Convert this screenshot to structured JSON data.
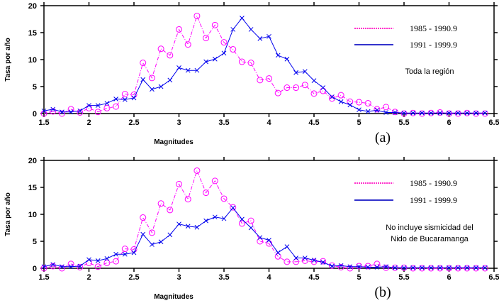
{
  "chart_data": [
    {
      "type": "line",
      "panel_label": "(a)",
      "note": [
        "Toda la región"
      ],
      "xlabel": "Magnitudes",
      "ylabel": "Tasa por año",
      "xlim": [
        1.5,
        6.5
      ],
      "ylim": [
        0,
        20
      ],
      "xticks": [
        "1.5",
        "2",
        "2.5",
        "3",
        "3.5",
        "4",
        "4.5",
        "5",
        "5.5",
        "6",
        "6.5"
      ],
      "yticks": [
        "0",
        "5",
        "10",
        "15",
        "20"
      ],
      "x_start": 1.5,
      "x_step": 0.1,
      "series": [
        {
          "name": "1985 - 1990.9",
          "color": "#ff00ff",
          "marker": "circle",
          "style": "dashdot",
          "values": [
            0,
            0.4,
            0,
            0.8,
            0.2,
            1,
            0.3,
            1,
            1.3,
            3.6,
            3.5,
            9.4,
            6.6,
            12,
            10.8,
            15.6,
            12.8,
            18.1,
            14,
            16.4,
            13.2,
            11.9,
            9.6,
            9.4,
            6.2,
            6.5,
            3.8,
            4.8,
            4.8,
            5.3,
            3.7,
            4.2,
            2.8,
            3.4,
            2.2,
            2.1,
            1.9,
            0.8,
            1.2,
            0.3,
            0,
            0.1,
            0,
            0.1,
            0.2,
            0,
            0,
            0.1,
            0,
            0
          ]
        },
        {
          "name": "1991 - 1999.9",
          "color": "#0000ee",
          "marker": "x",
          "style": "solid",
          "values": [
            0.5,
            0.8,
            0.3,
            0.3,
            0.5,
            1.5,
            1.5,
            1.9,
            2.7,
            2.6,
            2.9,
            6.3,
            4.5,
            5,
            6.2,
            8.5,
            8,
            8,
            9.6,
            10.1,
            11.2,
            15.6,
            17.7,
            15.6,
            13.9,
            14.3,
            10.8,
            10.1,
            7.6,
            7.8,
            6.1,
            4.8,
            3.1,
            2.2,
            1.6,
            0.7,
            0.4,
            0.6,
            0.2,
            0.2,
            0.1,
            0.1,
            0.1,
            0.1,
            0.1,
            0.1,
            0.1,
            0.1,
            0.1,
            0.1
          ]
        }
      ]
    },
    {
      "type": "line",
      "panel_label": "(b)",
      "note": [
        "No incluye sismicidad del",
        "Nido de Bucaramanga"
      ],
      "xlabel": "Magnitudes",
      "ylabel": "Tasa por año",
      "xlim": [
        1.5,
        6.5
      ],
      "ylim": [
        0,
        20
      ],
      "xticks": [
        "1.5",
        "2",
        "2.5",
        "3",
        "3.5",
        "4",
        "4.5",
        "5",
        "5.5",
        "6",
        "6.5"
      ],
      "yticks": [
        "0",
        "5",
        "10",
        "15",
        "20"
      ],
      "x_start": 1.5,
      "x_step": 0.1,
      "series": [
        {
          "name": "1985 - 1990.9",
          "color": "#ff00ff",
          "marker": "circle",
          "style": "dashdot",
          "values": [
            0,
            0.4,
            0,
            0.8,
            0.2,
            1,
            0.3,
            1,
            1.3,
            3.6,
            3.5,
            9.4,
            6.6,
            12,
            10.8,
            15.6,
            12.8,
            18.1,
            14,
            16.2,
            12.9,
            11.3,
            8.3,
            8.8,
            5,
            4.6,
            2.2,
            1.2,
            1.2,
            1.4,
            1.2,
            1.3,
            0.5,
            0.2,
            0,
            0.4,
            0.4,
            0.8,
            0.1,
            0.1,
            0.1,
            0,
            0,
            0,
            0,
            0,
            0,
            0,
            0,
            0
          ]
        },
        {
          "name": "1991 - 1999.9",
          "color": "#0000ee",
          "marker": "x",
          "style": "solid",
          "values": [
            0.3,
            0.7,
            0.3,
            0.3,
            0.4,
            1.6,
            1.4,
            1.8,
            2.6,
            2.6,
            2.9,
            6.3,
            4.4,
            4.9,
            6.2,
            8.2,
            7.8,
            7.6,
            8.8,
            9.5,
            9.2,
            11.2,
            9.1,
            7.5,
            5.7,
            5.2,
            2.9,
            4,
            1.9,
            1.9,
            1.5,
            1.1,
            0.4,
            0.5,
            0.3,
            0.3,
            0.2,
            0.2,
            0.3,
            0.1,
            0.1,
            0.1,
            0.1,
            0.1,
            0.1,
            0.1,
            0.1,
            0.1,
            0.1,
            0.1
          ]
        }
      ]
    }
  ]
}
